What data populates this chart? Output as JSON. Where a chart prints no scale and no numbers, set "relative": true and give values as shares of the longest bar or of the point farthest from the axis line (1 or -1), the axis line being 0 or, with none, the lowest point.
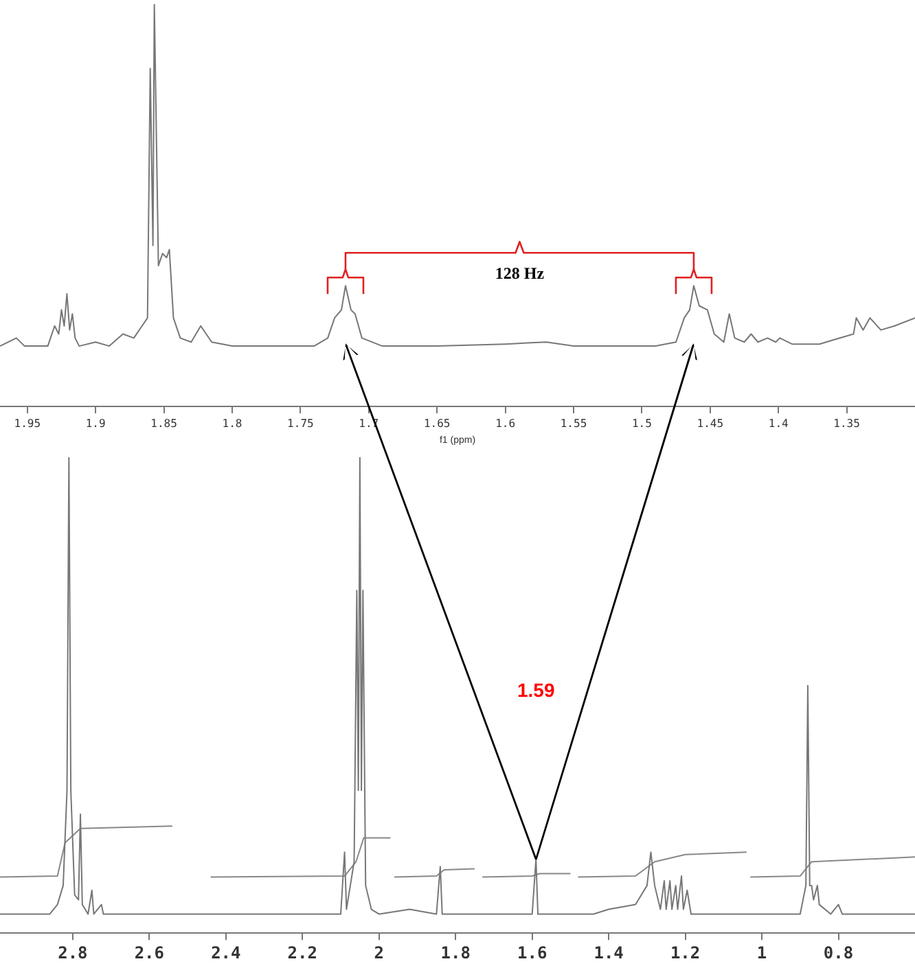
{
  "chart_data": [
    {
      "type": "line",
      "relative": true,
      "xlabel": "f1 (ppm)",
      "xlim": [
        1.97,
        1.3
      ],
      "xticks": [
        1.95,
        1.9,
        1.85,
        1.8,
        1.75,
        1.7,
        1.65,
        1.6,
        1.55,
        1.5,
        1.45,
        1.4,
        1.35
      ],
      "annotations": [
        "128 Hz"
      ],
      "series": [
        {
          "color": "#777777",
          "x": [
            1.97,
            1.958,
            1.952,
            1.935,
            1.93,
            1.927,
            1.925,
            1.923,
            1.921,
            1.919,
            1.917,
            1.915,
            1.912,
            1.9,
            1.89,
            1.88,
            1.872,
            1.866,
            1.862,
            1.86,
            1.858,
            1.857,
            1.854,
            1.851,
            1.848,
            1.846,
            1.843,
            1.838,
            1.83,
            1.823,
            1.815,
            1.8,
            1.76,
            1.74,
            1.73,
            1.725,
            1.72,
            1.717,
            1.713,
            1.71,
            1.705,
            1.69,
            1.65,
            1.6,
            1.57,
            1.55,
            1.49,
            1.475,
            1.469,
            1.465,
            1.462,
            1.458,
            1.452,
            1.447,
            1.44,
            1.436,
            1.432,
            1.425,
            1.42,
            1.415,
            1.408,
            1.402,
            1.399,
            1.39,
            1.37,
            1.36,
            1.345,
            1.343,
            1.338,
            1.333,
            1.325,
            1.315,
            1.3
          ],
          "values": [
            0.15,
            0.17,
            0.15,
            0.15,
            0.2,
            0.18,
            0.24,
            0.2,
            0.28,
            0.19,
            0.23,
            0.17,
            0.15,
            0.16,
            0.15,
            0.18,
            0.17,
            0.2,
            0.22,
            0.84,
            0.4,
            1.0,
            0.35,
            0.38,
            0.37,
            0.39,
            0.22,
            0.17,
            0.16,
            0.2,
            0.16,
            0.15,
            0.15,
            0.15,
            0.17,
            0.22,
            0.24,
            0.3,
            0.24,
            0.23,
            0.17,
            0.15,
            0.15,
            0.155,
            0.16,
            0.15,
            0.15,
            0.16,
            0.22,
            0.24,
            0.3,
            0.25,
            0.24,
            0.18,
            0.16,
            0.23,
            0.17,
            0.16,
            0.18,
            0.16,
            0.17,
            0.16,
            0.17,
            0.155,
            0.155,
            0.165,
            0.18,
            0.22,
            0.19,
            0.22,
            0.19,
            0.2,
            0.22
          ]
        }
      ]
    },
    {
      "type": "line",
      "relative": true,
      "xlim": [
        2.99,
        0.6
      ],
      "xticks": [
        2.8,
        2.6,
        2.4,
        2.2,
        2.0,
        1.8,
        1.6,
        1.4,
        1.2,
        1.0,
        0.8
      ],
      "annotations": [
        "1.59"
      ],
      "series": [
        {
          "color": "#777777",
          "x": [
            2.99,
            2.86,
            2.84,
            2.825,
            2.815,
            2.81,
            2.805,
            2.795,
            2.785,
            2.78,
            2.775,
            2.76,
            2.75,
            2.745,
            2.725,
            2.72,
            2.1,
            2.09,
            2.085,
            2.075,
            2.065,
            2.058,
            2.054,
            2.05,
            2.046,
            2.042,
            2.035,
            2.02,
            2.0,
            1.92,
            1.85,
            1.84,
            1.835,
            1.6,
            1.59,
            1.585,
            1.44,
            1.4,
            1.33,
            1.3,
            1.29,
            1.28,
            1.265,
            1.255,
            1.25,
            1.24,
            1.235,
            1.225,
            1.22,
            1.21,
            1.205,
            1.195,
            1.185,
            0.9,
            0.885,
            0.88,
            0.875,
            0.87,
            0.865,
            0.855,
            0.85,
            0.82,
            0.8,
            0.79,
            0.6
          ],
          "values": [
            0.04,
            0.04,
            0.06,
            0.1,
            0.3,
            1.0,
            0.3,
            0.08,
            0.07,
            0.25,
            0.06,
            0.04,
            0.09,
            0.04,
            0.06,
            0.04,
            0.04,
            0.17,
            0.05,
            0.1,
            0.15,
            0.72,
            0.3,
            1.0,
            0.3,
            0.72,
            0.1,
            0.05,
            0.04,
            0.05,
            0.04,
            0.14,
            0.04,
            0.04,
            0.155,
            0.04,
            0.04,
            0.05,
            0.06,
            0.1,
            0.17,
            0.1,
            0.05,
            0.11,
            0.05,
            0.11,
            0.05,
            0.1,
            0.05,
            0.12,
            0.05,
            0.09,
            0.04,
            0.04,
            0.1,
            0.52,
            0.1,
            0.1,
            0.07,
            0.1,
            0.06,
            0.04,
            0.06,
            0.04,
            0.04
          ]
        },
        {
          "color": "#888888",
          "x": [
            2.99,
            2.84,
            2.82,
            2.78,
            2.54,
            2.49,
            2.44,
            2.09,
            2.06,
            2.04,
            1.97,
            1.965,
            1.96,
            1.85,
            1.83,
            1.75,
            1.74,
            1.73,
            1.6,
            1.58,
            1.5,
            1.49,
            1.48,
            1.33,
            1.28,
            1.2,
            1.04,
            1.035,
            1.03,
            0.9,
            0.87,
            0.6
          ],
          "values": [
            0.118,
            0.12,
            0.19,
            0.22,
            0.225,
            null,
            0.118,
            0.12,
            0.15,
            0.2,
            0.2,
            null,
            0.118,
            0.12,
            0.133,
            0.135,
            null,
            0.118,
            0.12,
            0.125,
            0.125,
            null,
            0.118,
            0.12,
            0.15,
            0.165,
            0.17,
            null,
            0.118,
            0.12,
            0.15,
            0.16
          ]
        }
      ]
    }
  ]
}
